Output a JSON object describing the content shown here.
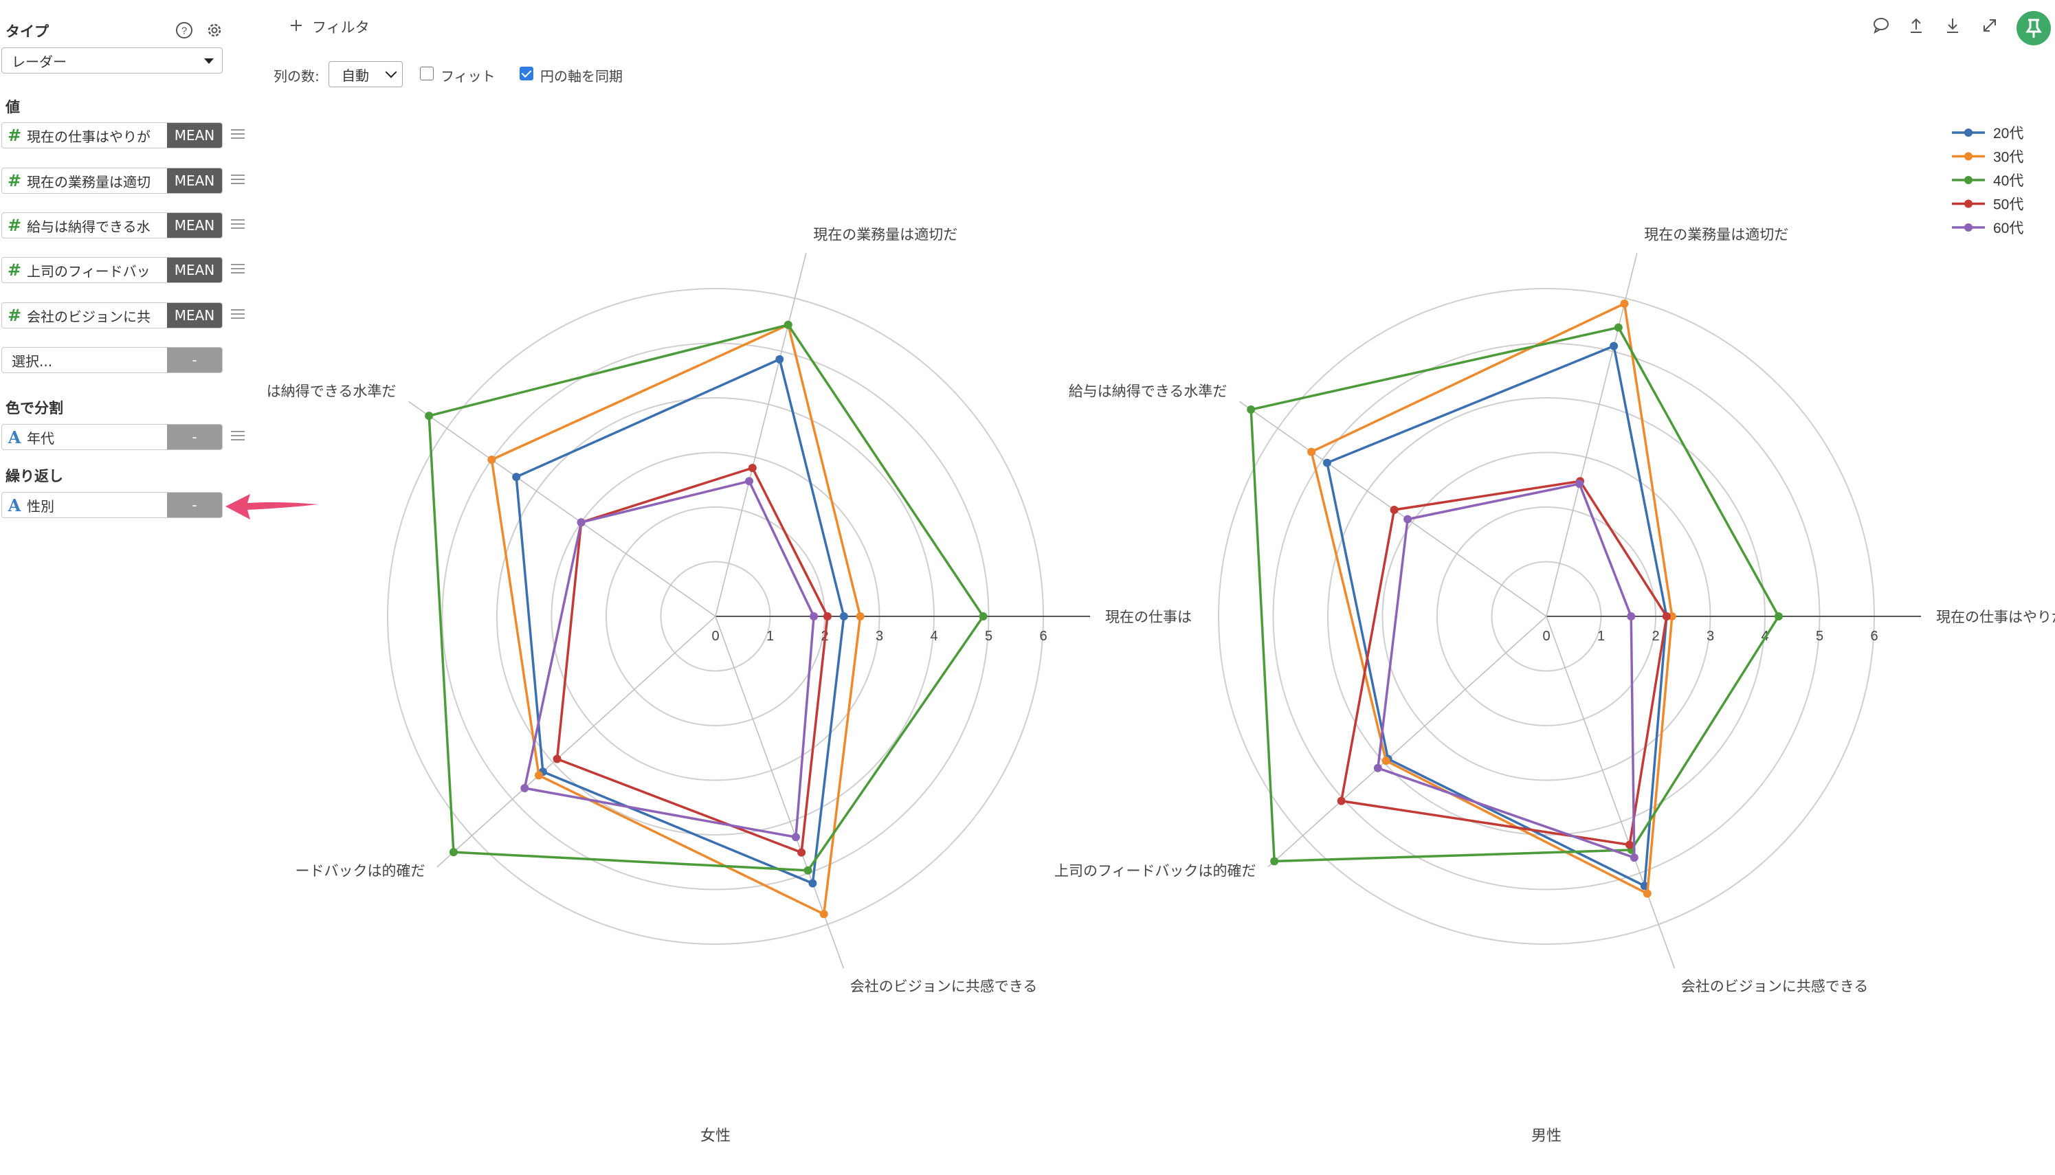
{
  "sidebar": {
    "type_title": "タイプ",
    "type_value": "レーダー",
    "values_title": "値",
    "value_items": [
      {
        "label": "現在の仕事はやりが",
        "agg": "MEAN"
      },
      {
        "label": "現在の業務量は適切",
        "agg": "MEAN"
      },
      {
        "label": "給与は納得できる水",
        "agg": "MEAN"
      },
      {
        "label": "上司のフィードバッ",
        "agg": "MEAN"
      },
      {
        "label": "会社のビジョンに共",
        "agg": "MEAN"
      }
    ],
    "select_placeholder": "選択...",
    "empty_agg": "-",
    "color_title": "色で分割",
    "color_field": "年代",
    "repeat_title": "繰り返し",
    "repeat_field": "性別"
  },
  "toolbar": {
    "add_filter": "フィルタ",
    "columns_label": "列の数:",
    "columns_value": "自動",
    "fit_label": "フィット",
    "fit_checked": false,
    "sync_label": "円の軸を同期",
    "sync_checked": true
  },
  "icons": [
    "help-icon",
    "gear-icon",
    "comment-icon",
    "upload-icon",
    "download-icon",
    "expand-icon",
    "pin-icon",
    "plus-icon"
  ],
  "chart_data": [
    {
      "type": "radar",
      "facet": "女性",
      "axes": [
        "現在の仕事は",
        "現在の業務量は適切だ",
        "は納得できる水準だ",
        "ードバックは的確だ",
        "会社のビジョンに共感できる"
      ],
      "ticks": [
        "0",
        "1",
        "2",
        "3",
        "4",
        "5",
        "6"
      ],
      "rmax": 6,
      "series": [
        {
          "name": "20代",
          "color": "#3a6fb0",
          "values": [
            2.35,
            4.85,
            4.45,
            4.25,
            5.2
          ]
        },
        {
          "name": "30代",
          "color": "#ee8a2c",
          "values": [
            2.65,
            5.5,
            5.0,
            4.35,
            5.8
          ]
        },
        {
          "name": "40代",
          "color": "#4c9b3a",
          "values": [
            4.9,
            5.5,
            6.4,
            6.45,
            4.95
          ]
        },
        {
          "name": "50代",
          "color": "#c23a35",
          "values": [
            2.05,
            2.8,
            3.0,
            3.9,
            4.6
          ]
        },
        {
          "name": "60代",
          "color": "#8d63b8",
          "values": [
            1.8,
            2.55,
            3.0,
            4.7,
            4.3
          ]
        }
      ]
    },
    {
      "type": "radar",
      "facet": "男性",
      "axes": [
        "現在の仕事はやりが",
        "現在の業務量は適切だ",
        "給与は納得できる水準だ",
        "上司のフィードバックは的確だ",
        "会社のビジョンに共感できる"
      ],
      "ticks": [
        "0",
        "1",
        "2",
        "3",
        "4",
        "5",
        "6"
      ],
      "rmax": 6,
      "series": [
        {
          "name": "20代",
          "color": "#3a6fb0",
          "values": [
            2.2,
            5.1,
            4.9,
            3.9,
            5.25
          ]
        },
        {
          "name": "30代",
          "color": "#ee8a2c",
          "values": [
            2.3,
            5.9,
            5.25,
            3.95,
            5.4
          ]
        },
        {
          "name": "40代",
          "color": "#4c9b3a",
          "values": [
            4.25,
            5.45,
            6.6,
            6.7,
            4.55
          ]
        },
        {
          "name": "50代",
          "color": "#c23a35",
          "values": [
            2.2,
            2.55,
            3.4,
            5.05,
            4.45
          ]
        },
        {
          "name": "60代",
          "color": "#8d63b8",
          "values": [
            1.55,
            2.5,
            3.1,
            4.15,
            4.7
          ]
        }
      ]
    }
  ],
  "legend": {
    "position": "top-right",
    "items": [
      {
        "name": "20代",
        "color": "#3a6fb0"
      },
      {
        "name": "30代",
        "color": "#ee8a2c"
      },
      {
        "name": "40代",
        "color": "#4c9b3a"
      },
      {
        "name": "50代",
        "color": "#c23a35"
      },
      {
        "name": "60代",
        "color": "#8d63b8"
      }
    ]
  },
  "annotation": {
    "arrow_color": "#e84a74",
    "target": "repeat-field"
  }
}
